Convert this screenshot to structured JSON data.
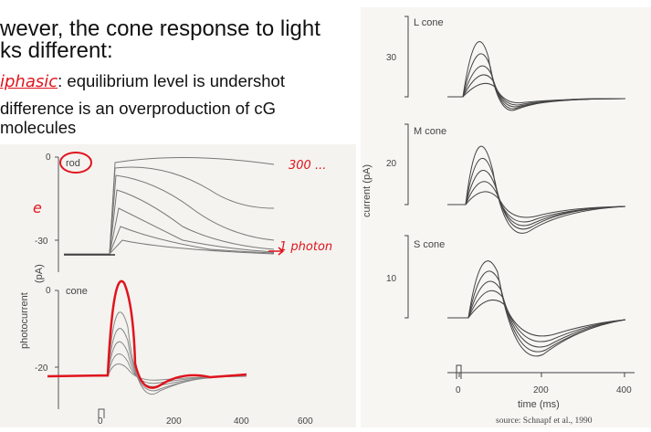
{
  "slide": {
    "lines": [
      "wever, the cone response to light",
      "ks different:",
      ": equilibrium level is undershot",
      "difference is an overproduction of cG",
      "molecules"
    ],
    "handwritten": {
      "biphasic": "iphasic",
      "count_300": "300 ...",
      "one_photon": "1 photon",
      "margin_mark": "e"
    }
  },
  "left_figure": {
    "panels": [
      {
        "label": "rod",
        "yticks": [
          "0",
          "-30"
        ]
      },
      {
        "label": "cone",
        "yticks": [
          "0",
          "-20"
        ]
      }
    ],
    "ylabel": "photocurrent",
    "yunit": "(pA)",
    "xticks": [
      "0",
      "200",
      "400",
      "600"
    ]
  },
  "right_figure": {
    "panels": [
      {
        "label": "L cone",
        "ytick": "30"
      },
      {
        "label": "M cone",
        "ytick": "20"
      },
      {
        "label": "S cone",
        "ytick": "10"
      }
    ],
    "ylabel": "current (pA)",
    "xticks": [
      "0",
      "200",
      "400"
    ],
    "xlabel": "time (ms)",
    "source": "source: Schnapf et al., 1990"
  },
  "colors": {
    "annotation": "#e0141e",
    "trace": "#666666",
    "text": "#111111"
  }
}
